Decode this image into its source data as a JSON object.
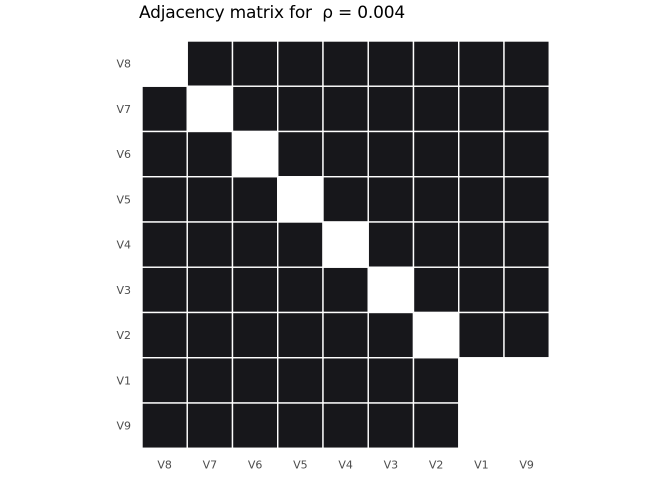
{
  "chart_data": {
    "type": "heatmap",
    "title": "Adjacency matrix for  ρ = 0.004",
    "x_labels": [
      "V8",
      "V7",
      "V6",
      "V5",
      "V4",
      "V3",
      "V2",
      "V1",
      "V9"
    ],
    "y_labels_top_to_bottom": [
      "V8",
      "V7",
      "V6",
      "V5",
      "V4",
      "V3",
      "V2",
      "V1",
      "V9"
    ],
    "cells_top_to_bottom": [
      [
        null,
        1,
        1,
        1,
        1,
        1,
        1,
        1,
        1
      ],
      [
        1,
        0,
        1,
        1,
        1,
        1,
        1,
        1,
        1
      ],
      [
        1,
        1,
        0,
        1,
        1,
        1,
        1,
        1,
        1
      ],
      [
        1,
        1,
        1,
        0,
        1,
        1,
        1,
        1,
        1
      ],
      [
        1,
        1,
        1,
        1,
        0,
        1,
        1,
        1,
        1
      ],
      [
        1,
        1,
        1,
        1,
        1,
        0,
        1,
        1,
        1
      ],
      [
        1,
        1,
        1,
        1,
        1,
        1,
        0,
        1,
        1
      ],
      [
        1,
        1,
        1,
        1,
        1,
        1,
        1,
        null,
        null
      ],
      [
        1,
        1,
        1,
        1,
        1,
        1,
        1,
        null,
        null
      ]
    ],
    "colors": {
      "edge": "#17171b",
      "no_edge": "#ffffff",
      "grid": "#ffffff",
      "tick_label": "#4d4d4d"
    },
    "legend": "none",
    "grid": false
  }
}
